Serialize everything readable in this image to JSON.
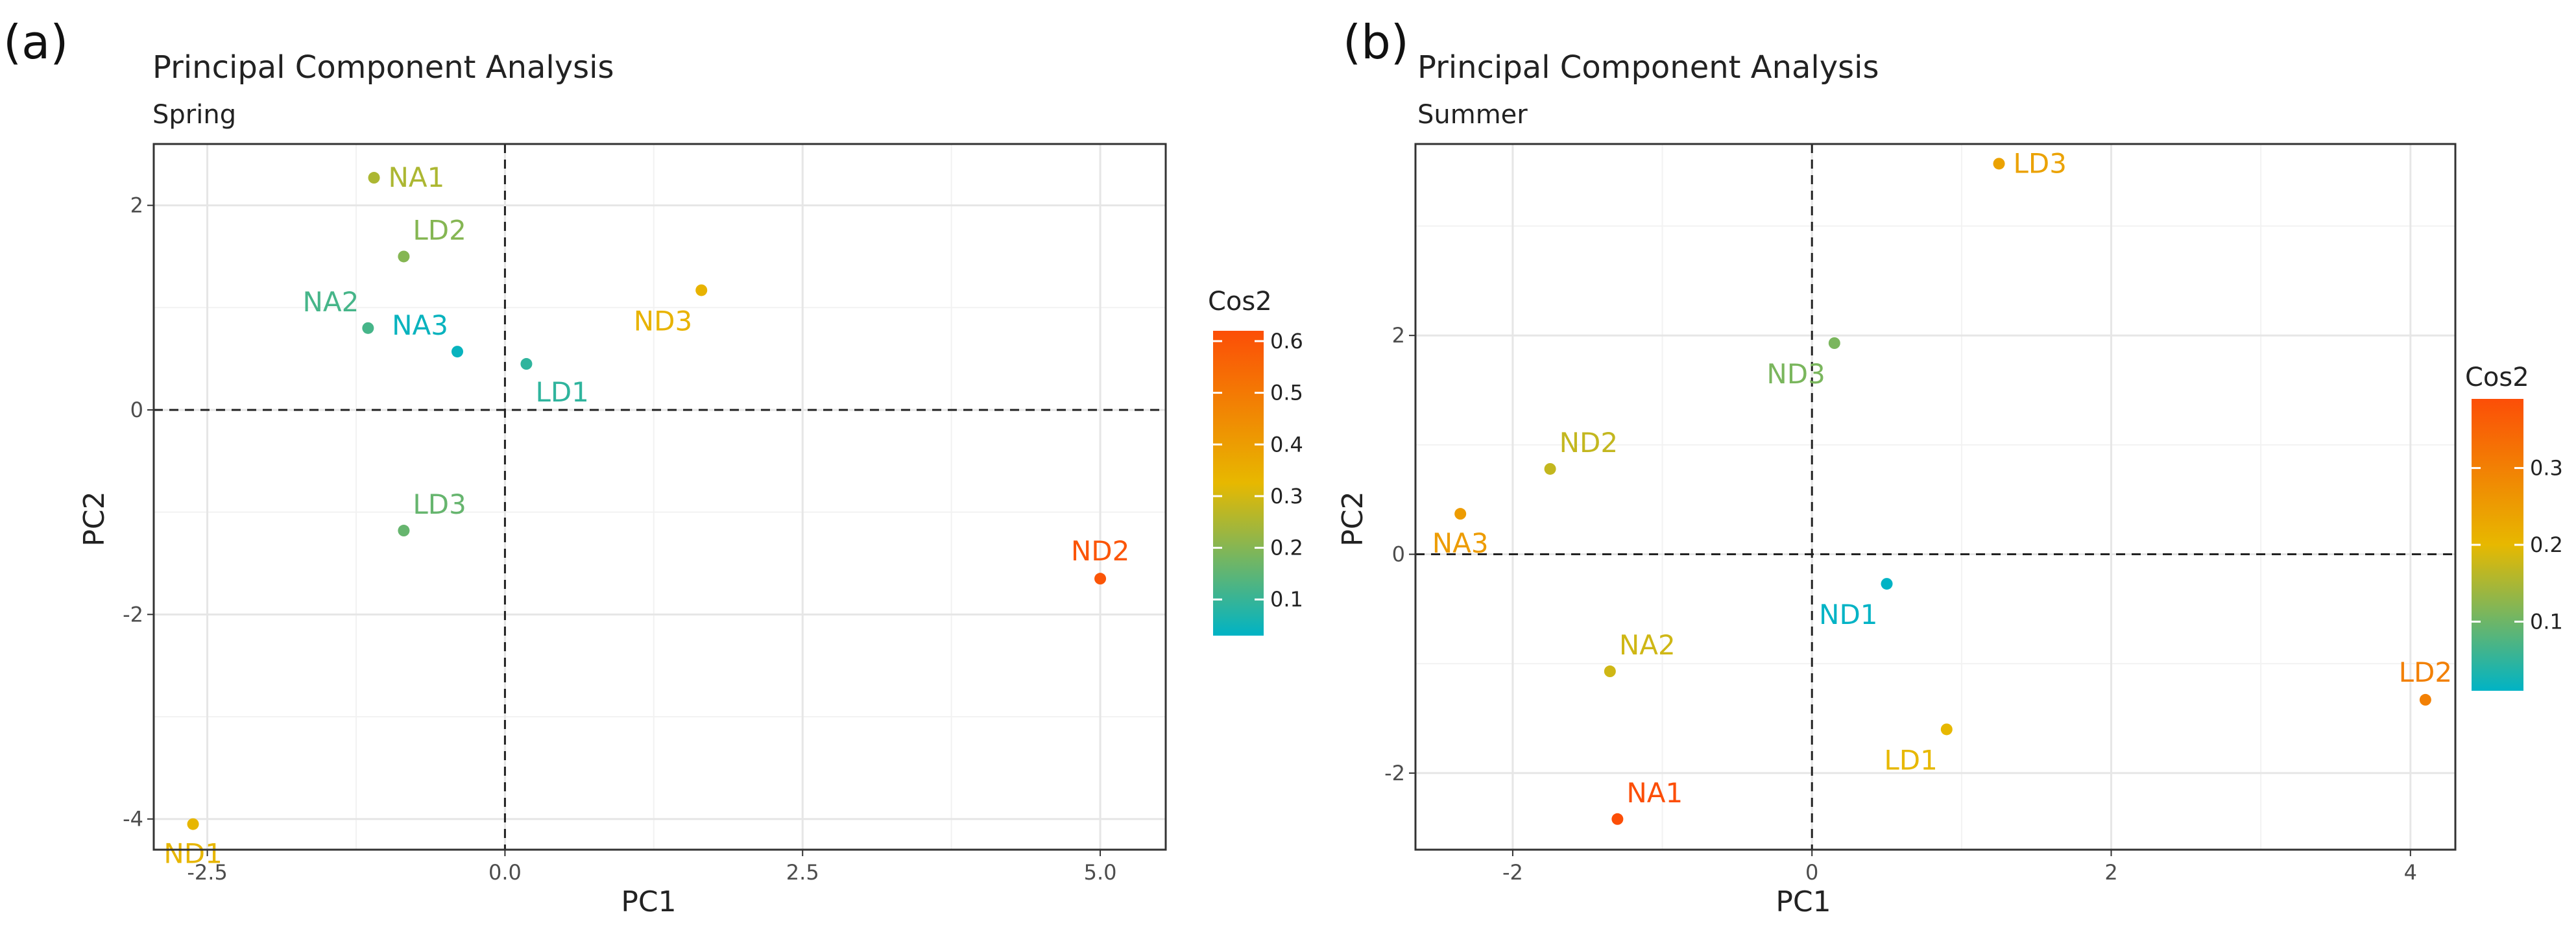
{
  "chart_data": [
    {
      "type": "scatter",
      "panel_label": "(a)",
      "title": "Principal Component Analysis",
      "subtitle": "Spring",
      "xlabel": "PC1",
      "ylabel": "PC2",
      "xlim": [
        -2.95,
        5.55
      ],
      "ylim": [
        -4.3,
        2.6
      ],
      "xticks": [
        -2.5,
        0.0,
        2.5,
        5.0
      ],
      "xtick_labels": [
        "-2.5",
        "0.0",
        "2.5",
        "5.0"
      ],
      "yticks": [
        -4,
        -2,
        0,
        2
      ],
      "ytick_labels": [
        "-4",
        "-2",
        "0",
        "2"
      ],
      "grid": true,
      "reference_lines": {
        "x": 0,
        "y": 0,
        "style": "dashed"
      },
      "legend": {
        "title": "Cos2",
        "placement": "right",
        "range": [
          0.03,
          0.62
        ],
        "ticks": [
          0.1,
          0.2,
          0.3,
          0.4,
          0.5,
          0.6
        ],
        "tick_labels": [
          "0.1",
          "0.2",
          "0.3",
          "0.4",
          "0.5",
          "0.6"
        ]
      },
      "points": [
        {
          "label": "NA1",
          "x": -1.1,
          "y": 2.27,
          "cos2": 0.25,
          "label_pos": "right"
        },
        {
          "label": "LD2",
          "x": -0.85,
          "y": 1.5,
          "cos2": 0.2,
          "label_pos": "above-right"
        },
        {
          "label": "NA2",
          "x": -1.15,
          "y": 0.8,
          "cos2": 0.12,
          "label_pos": "above-left"
        },
        {
          "label": "NA3",
          "x": -0.4,
          "y": 0.57,
          "cos2": 0.04,
          "label_pos": "above-left"
        },
        {
          "label": "LD1",
          "x": 0.18,
          "y": 0.45,
          "cos2": 0.09,
          "label_pos": "below-right"
        },
        {
          "label": "ND3",
          "x": 1.65,
          "y": 1.17,
          "cos2": 0.34,
          "label_pos": "below-left"
        },
        {
          "label": "LD3",
          "x": -0.85,
          "y": -1.18,
          "cos2": 0.16,
          "label_pos": "above-right"
        },
        {
          "label": "ND2",
          "x": 5.0,
          "y": -1.65,
          "cos2": 0.6,
          "label_pos": "above"
        },
        {
          "label": "ND1",
          "x": -2.62,
          "y": -4.05,
          "cos2": 0.33,
          "label_pos": "below"
        }
      ]
    },
    {
      "type": "scatter",
      "panel_label": "(b)",
      "title": "Principal Component Analysis",
      "subtitle": "Summer",
      "xlabel": "PC1",
      "ylabel": "PC2",
      "xlim": [
        -2.65,
        4.3
      ],
      "ylim": [
        -2.7,
        3.75
      ],
      "xticks": [
        -2,
        0,
        2,
        4
      ],
      "xtick_labels": [
        "-2",
        "0",
        "2",
        "4"
      ],
      "yticks": [
        -2,
        0,
        2
      ],
      "ytick_labels": [
        "-2",
        "0",
        "2"
      ],
      "grid": true,
      "reference_lines": {
        "x": 0,
        "y": 0,
        "style": "dashed"
      },
      "legend": {
        "title": "Cos2",
        "placement": "right",
        "range": [
          0.01,
          0.39
        ],
        "ticks": [
          0.1,
          0.2,
          0.3
        ],
        "tick_labels": [
          "0.1",
          "0.2",
          "0.3"
        ]
      },
      "points": [
        {
          "label": "LD3",
          "x": 1.25,
          "y": 3.57,
          "cos2": 0.24,
          "label_pos": "right"
        },
        {
          "label": "ND3",
          "x": 0.15,
          "y": 1.93,
          "cos2": 0.11,
          "label_pos": "below-left"
        },
        {
          "label": "ND2",
          "x": -1.75,
          "y": 0.78,
          "cos2": 0.17,
          "label_pos": "above-right"
        },
        {
          "label": "NA3",
          "x": -2.35,
          "y": 0.37,
          "cos2": 0.25,
          "label_pos": "below"
        },
        {
          "label": "ND1",
          "x": 0.5,
          "y": -0.27,
          "cos2": 0.01,
          "label_pos": "below-left"
        },
        {
          "label": "NA2",
          "x": -1.35,
          "y": -1.07,
          "cos2": 0.18,
          "label_pos": "above-right"
        },
        {
          "label": "LD1",
          "x": 0.9,
          "y": -1.6,
          "cos2": 0.2,
          "label_pos": "below-left"
        },
        {
          "label": "LD2",
          "x": 4.1,
          "y": -1.33,
          "cos2": 0.3,
          "label_pos": "above"
        },
        {
          "label": "NA1",
          "x": -1.3,
          "y": -2.42,
          "cos2": 0.39,
          "label_pos": "above-right"
        }
      ]
    }
  ]
}
